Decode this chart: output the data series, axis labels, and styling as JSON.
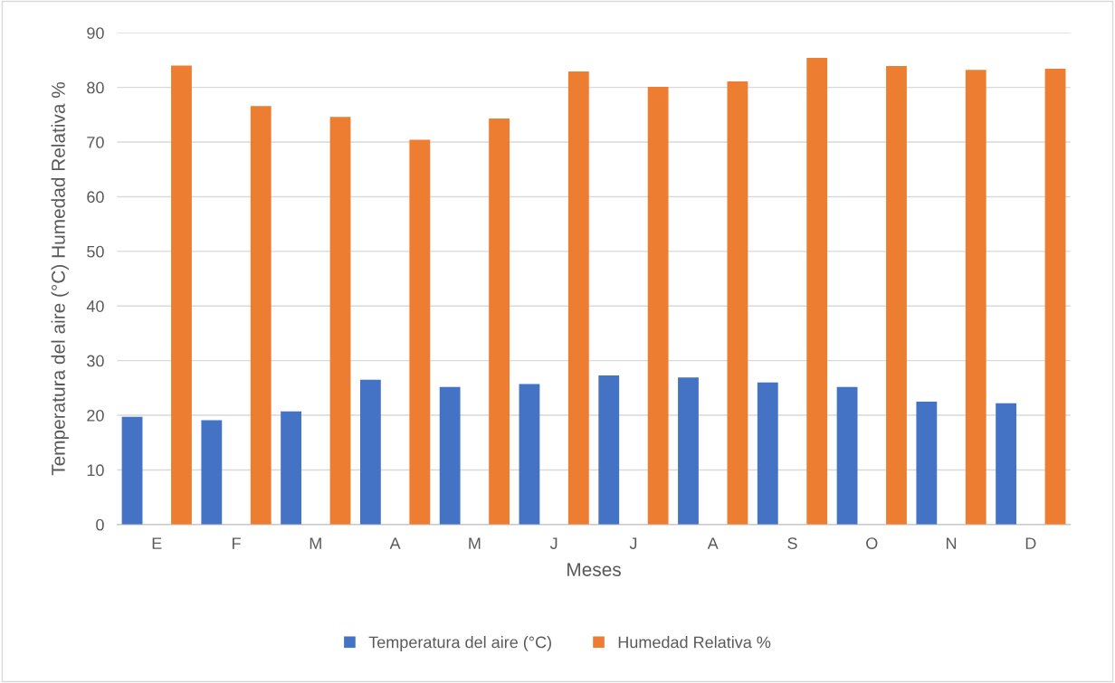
{
  "chart_data": {
    "type": "bar",
    "xlabel": "Meses",
    "ylabel": "Temperatura del aire (°C) Humedad Relativa %",
    "categories": [
      "E",
      "F",
      "M",
      "A",
      "M",
      "J",
      "J",
      "A",
      "S",
      "O",
      "N",
      "D"
    ],
    "series": [
      {
        "name": "Temperatura del aire (°C)",
        "color": "#4472c4",
        "values": [
          19.7,
          19.1,
          20.7,
          26.5,
          25.2,
          25.7,
          27.3,
          26.9,
          26.0,
          25.2,
          22.5,
          22.2
        ]
      },
      {
        "name": "Humedad Relativa %",
        "color": "#ed7d31",
        "values": [
          84.0,
          76.6,
          74.6,
          70.4,
          74.3,
          82.9,
          80.1,
          81.1,
          85.4,
          83.9,
          83.2,
          83.4
        ]
      }
    ],
    "ylim": [
      0,
      90
    ],
    "yticks": [
      0,
      10,
      20,
      30,
      40,
      50,
      60,
      70,
      80,
      90
    ],
    "grid": "y",
    "legend": "bottom"
  }
}
